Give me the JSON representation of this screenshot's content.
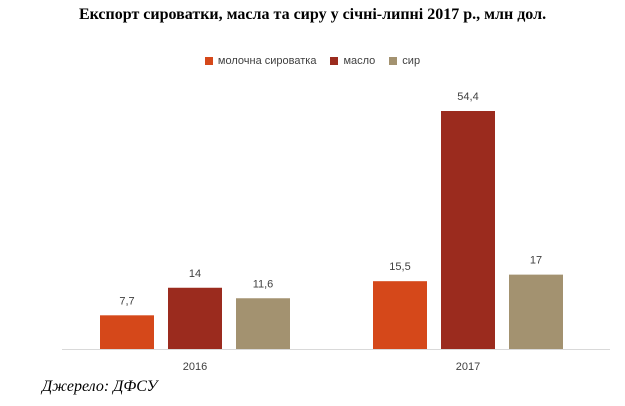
{
  "chart_data": {
    "type": "bar",
    "title": "Експорт сироватки, масла та сиру у січні-липні 2017 р., млн дол.",
    "categories": [
      "2016",
      "2017"
    ],
    "series": [
      {
        "name": "молочна сироватка",
        "values": [
          7.7,
          15.5
        ],
        "labels": [
          "7,7",
          "15,5"
        ],
        "color": "#D5481A"
      },
      {
        "name": "масло",
        "values": [
          14,
          54.4
        ],
        "labels": [
          "14",
          "54,4"
        ],
        "color": "#9B2B1E"
      },
      {
        "name": "сир",
        "values": [
          11.6,
          17
        ],
        "labels": [
          "11,6",
          "17"
        ],
        "color": "#A39270"
      }
    ],
    "ylim": [
      0,
      60
    ],
    "grid": false,
    "legend_position": "top-center"
  },
  "source": "Джерело: ДФСУ"
}
